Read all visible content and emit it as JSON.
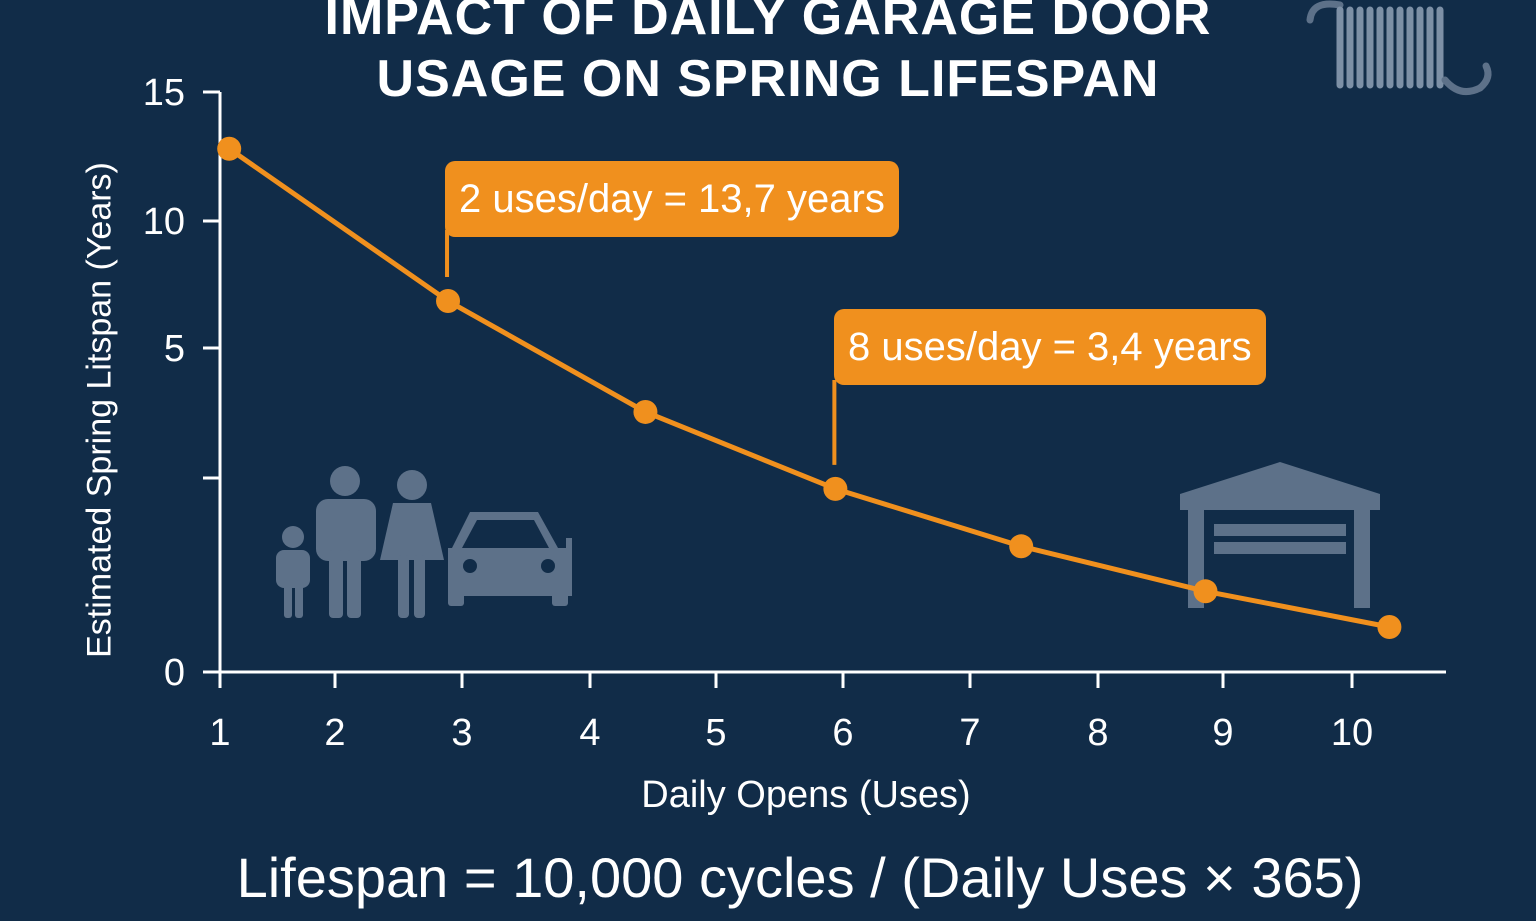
{
  "chart_data": {
    "type": "line",
    "title": "IMPACT OF DAILY GARAGE DOOR USAGE ON SPRING LIFESPAN",
    "title_lines": [
      "IMPACT OF DAILY GARAGE DOOR",
      "USAGE ON SPRING LIFESPAN"
    ],
    "xlabel": "Daily Opens (Uses)",
    "ylabel": "Estimated Spring Litspan (Years)",
    "x_ticks": [
      1,
      2,
      3,
      4,
      5,
      6,
      7,
      8,
      9,
      10
    ],
    "x_tick_labels": [
      "1",
      "2",
      "3",
      "4",
      "5",
      "6",
      "7",
      "8",
      "9",
      "10"
    ],
    "y_ticks": [
      0,
      2.5,
      5,
      10,
      15
    ],
    "y_tick_labels": [
      "0",
      "",
      "5",
      "10",
      "15"
    ],
    "xlim": [
      1,
      10.7
    ],
    "ylim": [
      0,
      15
    ],
    "grid": false,
    "series": [
      {
        "x": [
          1.08,
          2.89,
          4.44,
          5.94,
          7.4,
          8.86,
          10.29
        ],
        "y": [
          12.8,
          6.85,
          3.77,
          2.36,
          1.62,
          1.04,
          0.58
        ],
        "color": "#f0901e"
      }
    ],
    "annotations": [
      {
        "text": "2 uses/day = 13,7 years",
        "x": 2.89,
        "y": 6.85
      },
      {
        "text": "8 uses/day = 3,4 years",
        "x": 5.94,
        "y": 2.36
      }
    ],
    "formula": "Lifespan = 10,000 cycles / (Daily Uses × 365)"
  },
  "colors": {
    "background": "#112c48",
    "accent": "#f0901e",
    "icon": "#5d7189",
    "text": "#ffffff"
  },
  "icons": [
    "spring-icon",
    "family-icon",
    "car-icon",
    "garage-icon"
  ]
}
